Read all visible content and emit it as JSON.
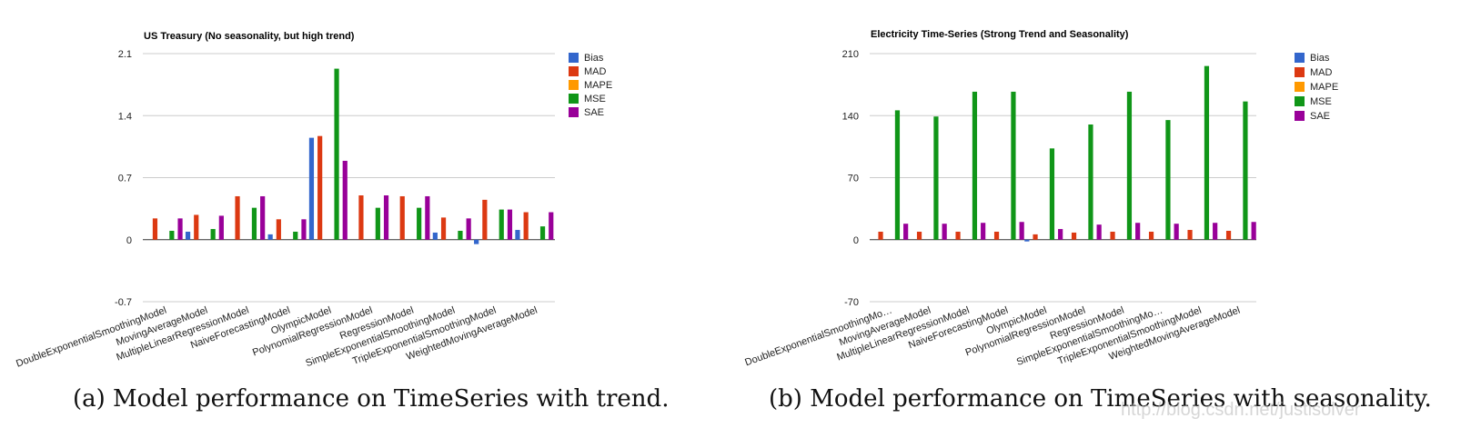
{
  "chart_data": [
    {
      "type": "bar",
      "title": "US Treasury (No seasonality, but high trend)",
      "ylim": [
        -0.7,
        2.1
      ],
      "yticks": [
        "2.1",
        "1.4",
        "0.7",
        "0",
        "-0.7"
      ],
      "ytick_values": [
        2.1,
        1.4,
        0.7,
        0,
        -0.7
      ],
      "grid": true,
      "legend_position": "right",
      "categories": [
        "DoubleExponentialSmoothingModel",
        "MovingAverageModel",
        "MultipleLinearRegressionModel",
        "NaiveForecastingModel",
        "OlympicModel",
        "PolynomialRegressionModel",
        "RegressionModel",
        "SimpleExponentialSmoothingModel",
        "TripleExponentialSmoothingModel",
        "WeightedMovingAverageModel"
      ],
      "category_labels": [
        "DoubleExponentialSmoothingModel",
        "MovingAverageModel",
        "MultipleLinearRegressionModel",
        "NaiveForecastingModel",
        "OlympicModel",
        "PolynomialRegressionModel",
        "RegressionModel",
        "SimpleExponentialSmoothingModel",
        "TripleExponentialSmoothingModel",
        "WeightedMovingAverageModel"
      ],
      "series": [
        {
          "name": "Bias",
          "color": "#3366cc",
          "values": [
            0.0,
            0.09,
            0.0,
            0.06,
            1.15,
            0.0,
            0.0,
            0.08,
            -0.05,
            0.11
          ]
        },
        {
          "name": "MAD",
          "color": "#dc3912",
          "values": [
            0.24,
            0.28,
            0.49,
            0.23,
            1.17,
            0.5,
            0.49,
            0.25,
            0.45,
            0.31
          ]
        },
        {
          "name": "MAPE",
          "color": "#ff9900",
          "values": [
            0.0,
            0.0,
            0.0,
            0.0,
            0.0,
            0.0,
            0.0,
            0.0,
            0.0,
            0.0
          ]
        },
        {
          "name": "MSE",
          "color": "#109618",
          "values": [
            0.1,
            0.12,
            0.36,
            0.09,
            1.93,
            0.36,
            0.36,
            0.1,
            0.34,
            0.15
          ]
        },
        {
          "name": "SAE",
          "color": "#990099",
          "values": [
            0.24,
            0.27,
            0.49,
            0.23,
            0.89,
            0.5,
            0.49,
            0.24,
            0.34,
            0.31
          ]
        }
      ]
    },
    {
      "type": "bar",
      "title": "Electricity Time-Series (Strong Trend and Seasonality)",
      "ylim": [
        -70,
        210
      ],
      "yticks": [
        "210",
        "140",
        "70",
        "0",
        "-70"
      ],
      "ytick_values": [
        210,
        140,
        70,
        0,
        -70
      ],
      "grid": true,
      "legend_position": "right",
      "categories": [
        "DoubleExponentialSmoothingModel",
        "MovingAverageModel",
        "MultipleLinearRegressionModel",
        "NaiveForecastingModel",
        "OlympicModel",
        "PolynomialRegressionModel",
        "RegressionModel",
        "SimpleExponentialSmoothingModel",
        "TripleExponentialSmoothingModel",
        "WeightedMovingAverageModel"
      ],
      "category_labels": [
        "DoubleExponentialSmoothingMo…",
        "MovingAverageModel",
        "MultipleLinearRegressionModel",
        "NaiveForecastingModel",
        "OlympicModel",
        "PolynomialRegressionModel",
        "RegressionModel",
        "SimpleExponentialSmoothingMo…",
        "TripleExponentialSmoothingModel",
        "WeightedMovingAverageModel"
      ],
      "series": [
        {
          "name": "Bias",
          "color": "#3366cc",
          "values": [
            0,
            0,
            0,
            0,
            -2,
            0,
            0,
            0,
            0,
            0
          ]
        },
        {
          "name": "MAD",
          "color": "#dc3912",
          "values": [
            9,
            9,
            9,
            9,
            6,
            8,
            9,
            9,
            11,
            10
          ]
        },
        {
          "name": "MAPE",
          "color": "#ff9900",
          "values": [
            0,
            0,
            0,
            0,
            0,
            0,
            0,
            0,
            0,
            0
          ]
        },
        {
          "name": "MSE",
          "color": "#109618",
          "values": [
            146,
            139,
            167,
            167,
            103,
            130,
            167,
            135,
            196,
            156
          ]
        },
        {
          "name": "SAE",
          "color": "#990099",
          "values": [
            18,
            18,
            19,
            20,
            12,
            17,
            19,
            18,
            19,
            20
          ]
        }
      ]
    }
  ],
  "captions": [
    "(a) Model performance on TimeSeries with trend.",
    "(b) Model performance on TimeSeries with seasonality."
  ],
  "watermark": "http://blog.csdn.net/justlsolver"
}
